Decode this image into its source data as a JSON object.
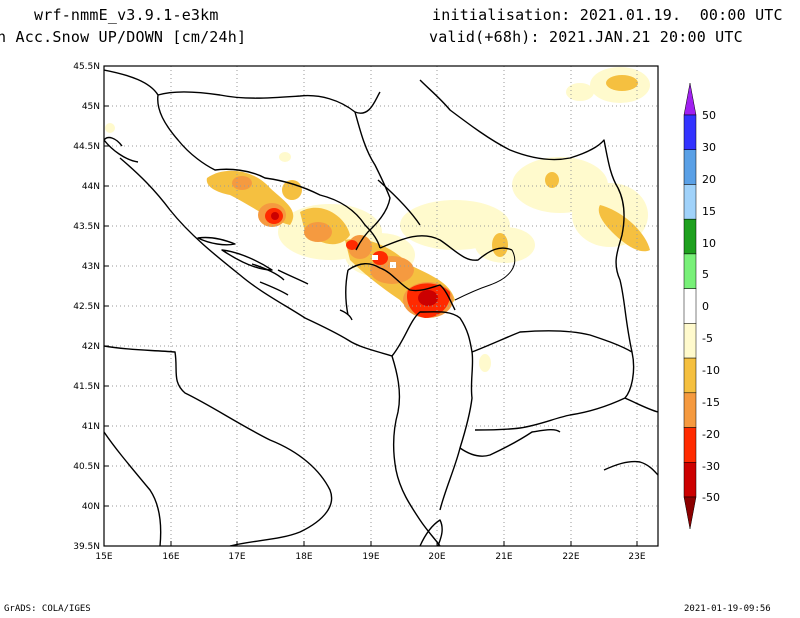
{
  "header": {
    "model": "wrf-nmmE_v3.9.1-e3km",
    "field": "n Acc.Snow UP/DOWN [cm/24h]",
    "initialisation": "initialisation: 2021.01.19.  00:00 UTC",
    "valid": "valid(+68h): 2021.JAN.21 20:00 UTC"
  },
  "footer": {
    "credit": "GrADS: COLA/IGES",
    "timestamp": "2021-01-19-09:56"
  },
  "map": {
    "lon_labels": [
      "15E",
      "16E",
      "17E",
      "18E",
      "19E",
      "20E",
      "21E",
      "22E",
      "23E"
    ],
    "lat_labels": [
      "45.5N",
      "45N",
      "44.5N",
      "44N",
      "43.5N",
      "43N",
      "42.5N",
      "42N",
      "41.5N",
      "41N",
      "40.5N",
      "40N",
      "39.5N"
    ],
    "lon_range": [
      15,
      23.3
    ],
    "lat_range": [
      39.5,
      45.5
    ],
    "grid": "dotted"
  },
  "colorbar": {
    "labels": [
      "50",
      "30",
      "20",
      "15",
      "10",
      "5",
      "0",
      "-5",
      "-10",
      "-15",
      "-20",
      "-30",
      "-50"
    ],
    "colors": [
      "#a020f0",
      "#3333ff",
      "#5aa0e6",
      "#a0d2fa",
      "#1ea01e",
      "#78f078",
      "#ffffff",
      "#fffacd",
      "#f5c040",
      "#f59a40",
      "#ff2a00",
      "#cc0000",
      "#8b0000"
    ]
  }
}
